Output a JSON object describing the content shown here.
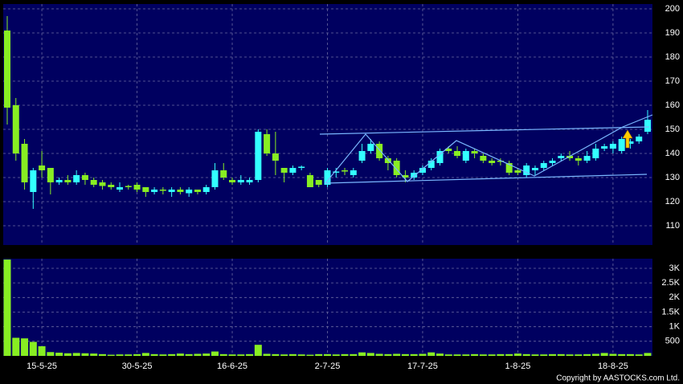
{
  "chart_data": [
    {
      "type": "candlestick",
      "categories": [
        null,
        null,
        null,
        null,
        "15-5-25",
        null,
        null,
        null,
        null,
        null,
        null,
        null,
        null,
        null,
        null,
        "30-5-25",
        null,
        null,
        null,
        null,
        null,
        null,
        null,
        null,
        null,
        null,
        "16-6-25",
        null,
        null,
        null,
        null,
        null,
        null,
        null,
        null,
        null,
        null,
        "2-7-25",
        null,
        null,
        null,
        null,
        null,
        null,
        null,
        null,
        null,
        null,
        "17-7-25",
        null,
        null,
        null,
        null,
        null,
        null,
        null,
        null,
        null,
        null,
        "1-8-25",
        null,
        null,
        null,
        null,
        null,
        null,
        null,
        null,
        null,
        null,
        "18-8-25",
        null,
        null,
        null,
        null
      ],
      "open": [
        191,
        160,
        144,
        124,
        135,
        134,
        128,
        129,
        128,
        131,
        129,
        128,
        127,
        125,
        126.5,
        127,
        126,
        124,
        125,
        124,
        125,
        123.5,
        125,
        124,
        126,
        133,
        129,
        128,
        128,
        129,
        148,
        140,
        134,
        132,
        134,
        131,
        129,
        127,
        132,
        133,
        131,
        137,
        141,
        144,
        138,
        137,
        131,
        130,
        132,
        134,
        136,
        142,
        141,
        137,
        141,
        139,
        137,
        137,
        136,
        133,
        131,
        133,
        134,
        136,
        138,
        139,
        138,
        137,
        138,
        142,
        142,
        141,
        144,
        145,
        149
      ],
      "high": [
        197,
        163,
        146,
        134,
        141,
        134,
        130,
        131,
        133,
        132,
        130,
        129,
        128,
        128,
        127,
        128,
        126,
        126,
        126,
        126,
        126,
        126,
        125,
        127,
        136,
        136,
        130,
        131,
        130,
        150,
        150,
        149,
        134,
        135,
        135,
        132,
        129,
        134,
        134,
        134,
        134,
        144,
        146,
        145,
        139,
        138,
        133,
        133,
        135,
        138,
        142,
        143,
        143,
        142,
        142,
        140,
        138,
        138,
        137,
        134,
        136,
        135,
        137,
        138,
        140,
        141,
        139,
        141,
        144,
        144,
        145,
        147,
        146,
        148,
        158
      ],
      "low": [
        152,
        137,
        125,
        117,
        130,
        123,
        127,
        127,
        127,
        127,
        126,
        125,
        125,
        124,
        125,
        124,
        122,
        123,
        123,
        122,
        123,
        122,
        123,
        123,
        125,
        129,
        127,
        127,
        127,
        128,
        139,
        131,
        128,
        131,
        133,
        126,
        126,
        126,
        130,
        131,
        130,
        136,
        140,
        137,
        133,
        130,
        128,
        129,
        131,
        133,
        135,
        140,
        138,
        136,
        138,
        136,
        135,
        135,
        131,
        131,
        130,
        131,
        133,
        135,
        137,
        137,
        135,
        136,
        137,
        141,
        140,
        140,
        142,
        144,
        148
      ],
      "close": [
        159,
        140,
        128,
        133,
        133,
        128,
        129,
        128,
        131,
        129,
        127,
        126.5,
        126,
        126,
        126,
        125,
        124,
        125,
        124.5,
        125,
        124,
        125,
        124,
        126,
        133,
        130,
        128,
        129,
        129,
        149,
        140,
        137,
        132,
        134,
        134.5,
        126,
        127,
        133,
        132.5,
        132.5,
        133,
        141,
        144,
        138,
        136,
        131,
        130,
        132,
        134,
        137,
        141,
        141,
        139,
        141,
        140,
        137,
        136,
        136.5,
        132,
        132,
        135,
        134,
        136,
        137,
        139,
        138,
        137,
        139,
        142,
        143,
        144,
        146,
        145,
        147,
        154
      ],
      "up_color": "#33ffff",
      "down_color": "#88ee22",
      "ylim": [
        102,
        202
      ],
      "yticks": [
        110,
        120,
        130,
        140,
        150,
        160,
        170,
        180,
        190,
        200
      ],
      "grid": true
    },
    {
      "type": "bar",
      "values": [
        3300,
        620,
        600,
        480,
        330,
        130,
        110,
        90,
        100,
        90,
        80,
        60,
        40,
        50,
        50,
        60,
        100,
        60,
        50,
        60,
        80,
        60,
        70,
        80,
        150,
        60,
        50,
        50,
        60,
        380,
        70,
        60,
        50,
        60,
        50,
        40,
        60,
        60,
        50,
        60,
        60,
        120,
        100,
        70,
        60,
        70,
        60,
        60,
        70,
        120,
        80,
        50,
        50,
        50,
        60,
        50,
        50,
        60,
        60,
        80,
        60,
        50,
        50,
        60,
        60,
        50,
        50,
        60,
        70,
        100,
        70,
        60,
        60,
        50,
        100
      ],
      "color": "#88ee22",
      "ylim": [
        0,
        3330
      ],
      "yticks": [
        {
          "value": 500,
          "label": "500"
        },
        {
          "value": 1000,
          "label": "1K"
        },
        {
          "value": 1500,
          "label": "1.5K"
        },
        {
          "value": 2000,
          "label": "2K"
        },
        {
          "value": 2500,
          "label": "2.5K"
        },
        {
          "value": 3000,
          "label": "3K"
        }
      ],
      "grid": true,
      "footnote": "Copyright by AASTOCKS.com Ltd."
    }
  ]
}
